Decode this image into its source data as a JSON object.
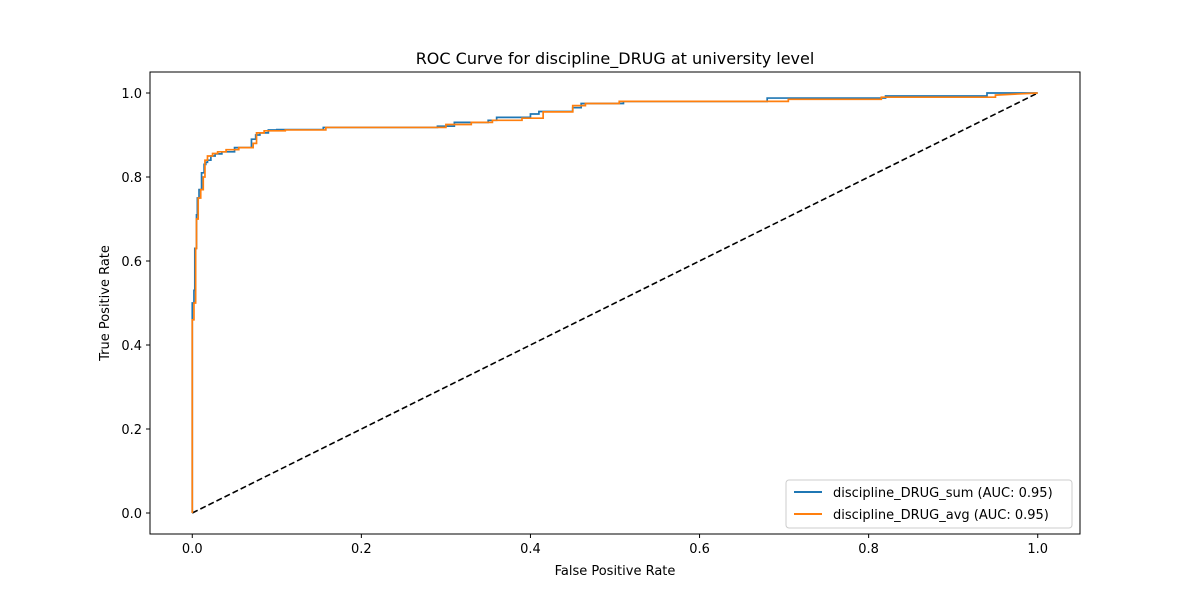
{
  "chart_data": {
    "type": "line",
    "title": "ROC Curve for discipline_DRUG at university level",
    "xlabel": "False Positive Rate",
    "ylabel": "True Positive Rate",
    "xlim": [
      -0.05,
      1.05
    ],
    "ylim": [
      -0.05,
      1.05
    ],
    "xticks": [
      0.0,
      0.2,
      0.4,
      0.6,
      0.8,
      1.0
    ],
    "yticks": [
      0.0,
      0.2,
      0.4,
      0.6,
      0.8,
      1.0
    ],
    "xtick_labels": [
      "0.0",
      "0.2",
      "0.4",
      "0.6",
      "0.8",
      "1.0"
    ],
    "ytick_labels": [
      "0.0",
      "0.2",
      "0.4",
      "0.6",
      "0.8",
      "1.0"
    ],
    "grid": false,
    "legend_position": "bottom-right",
    "series": [
      {
        "name": "discipline_DRUG_sum (AUC: 0.95)",
        "color": "#1f77b4",
        "x": [
          0.0,
          0.0,
          0.002,
          0.002,
          0.003,
          0.003,
          0.005,
          0.005,
          0.006,
          0.006,
          0.008,
          0.008,
          0.011,
          0.011,
          0.014,
          0.014,
          0.016,
          0.016,
          0.018,
          0.018,
          0.022,
          0.022,
          0.027,
          0.027,
          0.035,
          0.035,
          0.05,
          0.05,
          0.07,
          0.07,
          0.075,
          0.075,
          0.08,
          0.08,
          0.09,
          0.09,
          0.1,
          0.1,
          0.155,
          0.155,
          0.29,
          0.29,
          0.31,
          0.31,
          0.35,
          0.35,
          0.36,
          0.36,
          0.4,
          0.4,
          0.41,
          0.41,
          0.45,
          0.45,
          0.46,
          0.46,
          0.51,
          0.51,
          0.68,
          0.68,
          0.82,
          0.82,
          0.94,
          0.94,
          1.0
        ],
        "y": [
          0.0,
          0.5,
          0.5,
          0.53,
          0.53,
          0.63,
          0.63,
          0.71,
          0.71,
          0.75,
          0.75,
          0.77,
          0.77,
          0.81,
          0.81,
          0.83,
          0.83,
          0.835,
          0.835,
          0.84,
          0.84,
          0.85,
          0.85,
          0.855,
          0.855,
          0.86,
          0.86,
          0.87,
          0.87,
          0.89,
          0.89,
          0.9,
          0.9,
          0.905,
          0.905,
          0.912,
          0.912,
          0.913,
          0.913,
          0.918,
          0.918,
          0.921,
          0.921,
          0.93,
          0.93,
          0.935,
          0.935,
          0.942,
          0.942,
          0.95,
          0.95,
          0.956,
          0.956,
          0.965,
          0.965,
          0.975,
          0.975,
          0.98,
          0.98,
          0.988,
          0.988,
          0.993,
          0.993,
          1.0,
          1.0
        ]
      },
      {
        "name": "discipline_DRUG_avg (AUC: 0.95)",
        "color": "#ff7f0e",
        "x": [
          0.0,
          0.0,
          0.0,
          0.002,
          0.002,
          0.004,
          0.004,
          0.005,
          0.005,
          0.007,
          0.007,
          0.01,
          0.01,
          0.013,
          0.013,
          0.015,
          0.015,
          0.018,
          0.018,
          0.024,
          0.024,
          0.03,
          0.03,
          0.04,
          0.04,
          0.055,
          0.055,
          0.072,
          0.072,
          0.076,
          0.076,
          0.085,
          0.085,
          0.11,
          0.11,
          0.158,
          0.158,
          0.3,
          0.3,
          0.33,
          0.33,
          0.355,
          0.355,
          0.39,
          0.39,
          0.415,
          0.415,
          0.45,
          0.45,
          0.465,
          0.465,
          0.505,
          0.505,
          0.705,
          0.705,
          0.815,
          0.815,
          0.95,
          0.95,
          1.0
        ],
        "y": [
          0.0,
          0.44,
          0.46,
          0.46,
          0.5,
          0.5,
          0.63,
          0.63,
          0.7,
          0.7,
          0.75,
          0.75,
          0.77,
          0.77,
          0.8,
          0.8,
          0.84,
          0.84,
          0.85,
          0.85,
          0.856,
          0.856,
          0.86,
          0.86,
          0.865,
          0.865,
          0.87,
          0.87,
          0.88,
          0.88,
          0.905,
          0.905,
          0.91,
          0.91,
          0.912,
          0.912,
          0.918,
          0.918,
          0.925,
          0.925,
          0.93,
          0.93,
          0.935,
          0.935,
          0.94,
          0.94,
          0.955,
          0.955,
          0.97,
          0.97,
          0.975,
          0.975,
          0.98,
          0.98,
          0.985,
          0.985,
          0.99,
          0.99,
          0.995,
          1.0
        ]
      },
      {
        "name": "",
        "color": "#000000",
        "dashed": true,
        "x": [
          0.0,
          1.0
        ],
        "y": [
          0.0,
          1.0
        ]
      }
    ]
  }
}
